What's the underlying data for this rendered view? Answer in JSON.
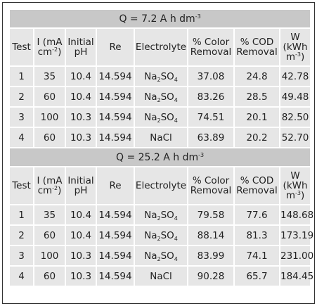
{
  "columns": {
    "test": "Test",
    "current": "I (mA cm",
    "current_exp": "-2",
    "current_close": ")",
    "ph": "Initial pH",
    "re": "Re",
    "electrolyte": "Electrolyte",
    "color": "% Color Removal",
    "cod": "% COD Removal",
    "w_main": "W (kWh m",
    "w_exp": "-3",
    "w_close": ")"
  },
  "sections": [
    {
      "title_prefix": "Q = 7.2 A h dm",
      "title_exp": "-3",
      "rows": [
        {
          "test": "1",
          "i": "35",
          "ph": "10.4",
          "re": "14.594",
          "el": "Na",
          "el_sub1": "2",
          "el_mid": "SO",
          "el_sub2": "4",
          "color": "37.08",
          "cod": "24.8",
          "w": "42.78"
        },
        {
          "test": "2",
          "i": "60",
          "ph": "10.4",
          "re": "14.594",
          "el": "Na",
          "el_sub1": "2",
          "el_mid": "SO",
          "el_sub2": "4",
          "color": "83.26",
          "cod": "28.5",
          "w": "49.48"
        },
        {
          "test": "3",
          "i": "100",
          "ph": "10.3",
          "re": "14.594",
          "el": "Na",
          "el_sub1": "2",
          "el_mid": "SO",
          "el_sub2": "4",
          "color": "74.51",
          "cod": "20.1",
          "w": "82.50"
        },
        {
          "test": "4",
          "i": "60",
          "ph": "10.3",
          "re": "14.594",
          "el": "NaCl",
          "el_sub1": "",
          "el_mid": "",
          "el_sub2": "",
          "color": "63.89",
          "cod": "20.2",
          "w": "52.70"
        }
      ]
    },
    {
      "title_prefix": "Q = 25.2 A h dm",
      "title_exp": "-3",
      "rows": [
        {
          "test": "1",
          "i": "35",
          "ph": "10.4",
          "re": "14.594",
          "el": "Na",
          "el_sub1": "2",
          "el_mid": "SO",
          "el_sub2": "4",
          "color": "79.58",
          "cod": "77.6",
          "w": "148.68"
        },
        {
          "test": "2",
          "i": "60",
          "ph": "10.4",
          "re": "14.594",
          "el": "Na",
          "el_sub1": "2",
          "el_mid": "SO",
          "el_sub2": "4",
          "color": "88.14",
          "cod": "81.3",
          "w": "173.19"
        },
        {
          "test": "3",
          "i": "100",
          "ph": "10.3",
          "re": "14.594",
          "el": "Na",
          "el_sub1": "2",
          "el_mid": "SO",
          "el_sub2": "4",
          "color": "83.99",
          "cod": "74.1",
          "w": "231.00"
        },
        {
          "test": "4",
          "i": "60",
          "ph": "10.3",
          "re": "14.594",
          "el": "NaCl",
          "el_sub1": "",
          "el_mid": "",
          "el_sub2": "",
          "color": "90.28",
          "cod": "65.7",
          "w": "184.45"
        }
      ]
    }
  ]
}
